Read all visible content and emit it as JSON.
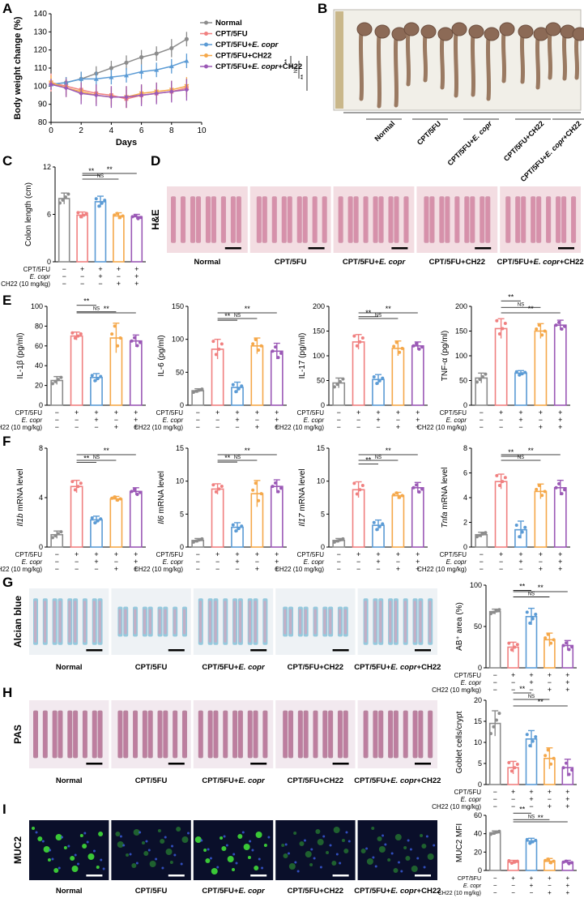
{
  "panel_letters": [
    "A",
    "B",
    "C",
    "D",
    "E",
    "F",
    "G",
    "H",
    "I"
  ],
  "colors": {
    "Normal": "#8c8c8c",
    "CPT/5FU": "#f08080",
    "CPT/5FU+E. copr": "#5b9bd5",
    "CPT/5FU+CH22": "#f5a84a",
    "CPT/5FU+E. copr+CH22": "#9b59b6"
  },
  "groups": [
    "Normal",
    "CPT/5FU",
    "CPT/5FU+E. copr",
    "CPT/5FU+CH22",
    "CPT/5FU+E. copr+CH22"
  ],
  "treatment_matrix": {
    "row_labels": [
      "CPT/5FU",
      "E. copr",
      "CH22 (10 mg/kg)"
    ],
    "rows": [
      [
        "−",
        "+",
        "+",
        "+",
        "+"
      ],
      [
        "−",
        "−",
        "+",
        "−",
        "+"
      ],
      [
        "−",
        "−",
        "−",
        "+",
        "+"
      ]
    ]
  },
  "panel_A": {
    "ylabel": "Body weight change (%)",
    "xlabel": "Days",
    "legend": [
      "Normal",
      "CPT/5FU",
      "CPT/5FU+E. copr",
      "CPT/5FU+CH22",
      "CPT/5FU+E. copr+CH22"
    ],
    "sig": [
      "**",
      "NS",
      "**"
    ]
  },
  "panel_B": {
    "labels": [
      "Normal",
      "CPT/5FU",
      "CPT/5FU+E. copr",
      "CPT/5FU+CH22",
      "CPT/5FU+E. copr+CH22"
    ]
  },
  "panel_D": {
    "stain": "H&E",
    "labels": [
      "Normal",
      "CPT/5FU",
      "CPT/5FU+E. copr",
      "CPT/5FU+CH22",
      "CPT/5FU+E. copr+CH22"
    ]
  },
  "panel_G": {
    "stain": "Alcian blue",
    "labels": [
      "Normal",
      "CPT/5FU",
      "CPT/5FU+E. copr",
      "CPT/5FU+CH22",
      "CPT/5FU+E. copr+CH22"
    ]
  },
  "panel_H": {
    "stain": "PAS",
    "labels": [
      "Normal",
      "CPT/5FU",
      "CPT/5FU+E. copr",
      "CPT/5FU+CH22",
      "CPT/5FU+E. copr+CH22"
    ]
  },
  "panel_I": {
    "stain": "MUC2",
    "labels": [
      "Normal",
      "CPT/5FU",
      "CPT/5FU+E. copr",
      "CPT/5FU+CH22",
      "CPT/5FU+E. copr+CH22"
    ]
  },
  "chart_data": [
    {
      "id": "A",
      "type": "line",
      "xlabel": "Days",
      "ylabel": "Body weight change (%)",
      "xlim": [
        0,
        10
      ],
      "ylim": [
        80,
        140
      ],
      "xticks": [
        0,
        2,
        4,
        6,
        8,
        10
      ],
      "yticks": [
        80,
        90,
        100,
        110,
        120,
        130,
        140
      ],
      "legend_position": "right",
      "x": [
        0,
        1,
        2,
        3,
        4,
        5,
        6,
        7,
        8,
        9
      ],
      "series": [
        {
          "name": "Normal",
          "values": [
            101,
            102,
            104,
            107,
            110,
            113,
            116,
            118,
            121,
            126
          ],
          "err": [
            3,
            3,
            4,
            4,
            4,
            4,
            4,
            4,
            5,
            4
          ]
        },
        {
          "name": "CPT/5FU",
          "values": [
            102,
            100,
            98,
            96,
            95,
            93,
            95,
            96,
            97,
            99
          ],
          "err": [
            5,
            5,
            5,
            5,
            5,
            5,
            5,
            5,
            5,
            5
          ]
        },
        {
          "name": "CPT/5FU+E. copr",
          "values": [
            101,
            102,
            104,
            104,
            105,
            106,
            108,
            109,
            111,
            114
          ],
          "err": [
            3,
            3,
            4,
            4,
            4,
            4,
            4,
            4,
            4,
            4
          ]
        },
        {
          "name": "CPT/5FU+CH22",
          "values": [
            102,
            99,
            97,
            95,
            94,
            94,
            96,
            97,
            98,
            100
          ],
          "err": [
            4,
            5,
            5,
            5,
            5,
            6,
            5,
            5,
            5,
            5
          ]
        },
        {
          "name": "CPT/5FU+E. copr+CH22",
          "values": [
            101,
            99,
            96,
            95,
            94,
            94,
            95,
            96,
            97,
            98
          ],
          "err": [
            3,
            5,
            6,
            6,
            6,
            6,
            6,
            6,
            6,
            6
          ]
        }
      ]
    },
    {
      "id": "C",
      "type": "bar",
      "ylabel": "Colon length (cm)",
      "ylim": [
        0,
        12
      ],
      "yticks": [
        0,
        6,
        12
      ],
      "categories": [
        "Normal",
        "CPT/5FU",
        "CPT/5FU+E. copr",
        "CPT/5FU+CH22",
        "CPT/5FU+E. copr+CH22"
      ],
      "values": [
        8.0,
        5.9,
        7.6,
        5.8,
        5.7
      ],
      "err": [
        0.7,
        0.4,
        0.7,
        0.4,
        0.3
      ]
    },
    {
      "id": "E1",
      "type": "bar",
      "ylabel": "IL-1β (pg/ml)",
      "ylim": [
        0,
        100
      ],
      "yticks": [
        0,
        20,
        40,
        60,
        80,
        100
      ],
      "categories": [
        "Normal",
        "CPT/5FU",
        "CPT/5FU+E. copr",
        "CPT/5FU+CH22",
        "CPT/5FU+E. copr+CH22"
      ],
      "values": [
        25,
        70,
        28,
        68,
        65
      ],
      "err": [
        4,
        4,
        4,
        15,
        6
      ]
    },
    {
      "id": "E2",
      "type": "bar",
      "ylabel": "IL-6 (pg/ml)",
      "ylim": [
        0,
        150
      ],
      "yticks": [
        0,
        50,
        100,
        150
      ],
      "categories": [
        "Normal",
        "CPT/5FU",
        "CPT/5FU+E. copr",
        "CPT/5FU+CH22",
        "CPT/5FU+E. copr+CH22"
      ],
      "values": [
        22,
        85,
        27,
        90,
        82
      ],
      "err": [
        3,
        15,
        8,
        12,
        12
      ]
    },
    {
      "id": "E3",
      "type": "bar",
      "ylabel": "IL-17 (pg/ml)",
      "ylim": [
        0,
        200
      ],
      "yticks": [
        0,
        50,
        100,
        150,
        200
      ],
      "categories": [
        "Normal",
        "CPT/5FU",
        "CPT/5FU+E. copr",
        "CPT/5FU+CH22",
        "CPT/5FU+E. copr+CH22"
      ],
      "values": [
        45,
        128,
        52,
        115,
        120
      ],
      "err": [
        10,
        15,
        10,
        15,
        8
      ]
    },
    {
      "id": "E4",
      "type": "bar",
      "ylabel": "TNF-α (pg/ml)",
      "ylim": [
        0,
        200
      ],
      "yticks": [
        0,
        50,
        100,
        150,
        200
      ],
      "categories": [
        "Normal",
        "CPT/5FU",
        "CPT/5FU+E. copr",
        "CPT/5FU+CH22",
        "CPT/5FU+E. copr+CH22"
      ],
      "values": [
        55,
        155,
        65,
        150,
        162
      ],
      "err": [
        10,
        20,
        5,
        15,
        10
      ]
    },
    {
      "id": "F1",
      "type": "bar",
      "ylabel": "Il1b mRNA level",
      "ylim": [
        0,
        8
      ],
      "yticks": [
        0,
        4,
        8
      ],
      "categories": [
        "Normal",
        "CPT/5FU",
        "CPT/5FU+E. copr",
        "CPT/5FU+CH22",
        "CPT/5FU+E. copr+CH22"
      ],
      "values": [
        1.0,
        4.9,
        2.2,
        3.9,
        4.5
      ],
      "err": [
        0.3,
        0.5,
        0.3,
        0.2,
        0.3
      ]
    },
    {
      "id": "F2",
      "type": "bar",
      "ylabel": "Il6 mRNA level",
      "ylim": [
        0,
        15
      ],
      "yticks": [
        0,
        5,
        10,
        15
      ],
      "categories": [
        "Normal",
        "CPT/5FU",
        "CPT/5FU+E. copr",
        "CPT/5FU+CH22",
        "CPT/5FU+E. copr+CH22"
      ],
      "values": [
        1.0,
        8.8,
        3.0,
        8.1,
        9.2
      ],
      "err": [
        0.3,
        0.8,
        0.7,
        2.0,
        1.0
      ]
    },
    {
      "id": "F3",
      "type": "bar",
      "ylabel": "Il17 mRNA level",
      "ylim": [
        0,
        15
      ],
      "yticks": [
        0,
        5,
        10,
        15
      ],
      "categories": [
        "Normal",
        "CPT/5FU",
        "CPT/5FU+E. copr",
        "CPT/5FU+CH22",
        "CPT/5FU+E. copr+CH22"
      ],
      "values": [
        1.0,
        8.7,
        3.3,
        7.8,
        9.0
      ],
      "err": [
        0.3,
        1.2,
        0.8,
        0.5,
        0.8
      ]
    },
    {
      "id": "F4",
      "type": "bar",
      "ylabel": "Tnfa mRNA level",
      "ylim": [
        0,
        8
      ],
      "yticks": [
        0,
        2,
        4,
        6,
        8
      ],
      "categories": [
        "Normal",
        "CPT/5FU",
        "CPT/5FU+E. copr",
        "CPT/5FU+CH22",
        "CPT/5FU+E. copr+CH22"
      ],
      "values": [
        1.0,
        5.3,
        1.4,
        4.5,
        4.8
      ],
      "err": [
        0.2,
        0.6,
        0.7,
        0.6,
        0.6
      ]
    },
    {
      "id": "G",
      "type": "bar",
      "ylabel": "AB⁺ area (%)",
      "ylim": [
        0,
        100
      ],
      "yticks": [
        0,
        50,
        100
      ],
      "categories": [
        "Normal",
        "CPT/5FU",
        "CPT/5FU+E. copr",
        "CPT/5FU+CH22",
        "CPT/5FU+E. copr+CH22"
      ],
      "values": [
        68,
        25,
        62,
        34,
        27
      ],
      "err": [
        3,
        6,
        10,
        8,
        6
      ]
    },
    {
      "id": "H",
      "type": "bar",
      "ylabel": "Goblet cells/crypt",
      "ylim": [
        0,
        20
      ],
      "yticks": [
        0,
        5,
        10,
        15,
        20
      ],
      "categories": [
        "Normal",
        "CPT/5FU",
        "CPT/5FU+E. copr",
        "CPT/5FU+CH22",
        "CPT/5FU+E. copr+CH22"
      ],
      "values": [
        14.5,
        4.0,
        10.8,
        6.2,
        4.0
      ],
      "err": [
        3,
        1.5,
        2,
        2.5,
        2
      ]
    },
    {
      "id": "I",
      "type": "bar",
      "ylabel": "MUC2 MFI",
      "ylim": [
        0,
        60
      ],
      "yticks": [
        0,
        20,
        40,
        60
      ],
      "categories": [
        "Normal",
        "CPT/5FU",
        "CPT/5FU+E. copr",
        "CPT/5FU+CH22",
        "CPT/5FU+E. copr+CH22"
      ],
      "values": [
        41,
        9,
        32,
        10,
        9
      ],
      "err": [
        2,
        2,
        3,
        3,
        2
      ]
    }
  ]
}
